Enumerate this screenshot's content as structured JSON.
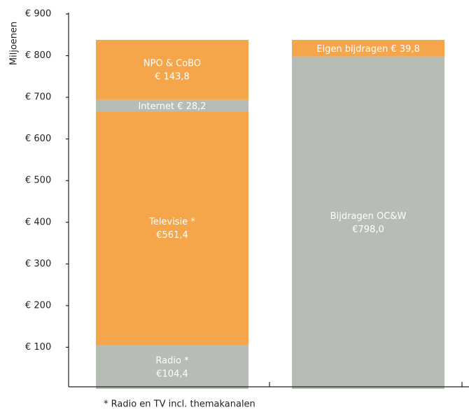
{
  "chart_data": {
    "type": "stacked_bar",
    "y_axis_label": "Miljoenen",
    "footnote": "* Radio en TV incl. themakanalen",
    "ylim": [
      0,
      900
    ],
    "yticks": [
      {
        "value": 100,
        "label": "€ 100"
      },
      {
        "value": 200,
        "label": "€ 200"
      },
      {
        "value": 300,
        "label": "€ 300"
      },
      {
        "value": 400,
        "label": "€ 400"
      },
      {
        "value": 500,
        "label": "€ 500"
      },
      {
        "value": 600,
        "label": "€ 600"
      },
      {
        "value": 700,
        "label": "€ 700"
      },
      {
        "value": 800,
        "label": "€ 800"
      },
      {
        "value": 900,
        "label": "€ 900"
      }
    ],
    "bars": [
      {
        "segments": [
          {
            "name": "Radio *",
            "value": 104.4,
            "value_label": "€104,4",
            "color": "#b5bdb4",
            "inline": false
          },
          {
            "name": "Televisie *",
            "value": 561.4,
            "value_label": "€561,4",
            "color": "#f5a54a",
            "inline": false
          },
          {
            "name": "Internet",
            "value": 28.2,
            "value_label": "€ 28,2",
            "color": "#b5bdb4",
            "inline": true
          },
          {
            "name": "NPO & CoBO",
            "value": 143.8,
            "value_label": "€ 143,8",
            "color": "#f5a54a",
            "inline": false
          }
        ]
      },
      {
        "segments": [
          {
            "name": "Bijdragen OC&W",
            "value": 798.0,
            "value_label": "€798,0",
            "color": "#b5bdb4",
            "inline": false
          },
          {
            "name": "Eigen bijdragen",
            "value": 39.8,
            "value_label": "€ 39,8",
            "color": "#f5a54a",
            "inline": true
          }
        ]
      }
    ]
  }
}
